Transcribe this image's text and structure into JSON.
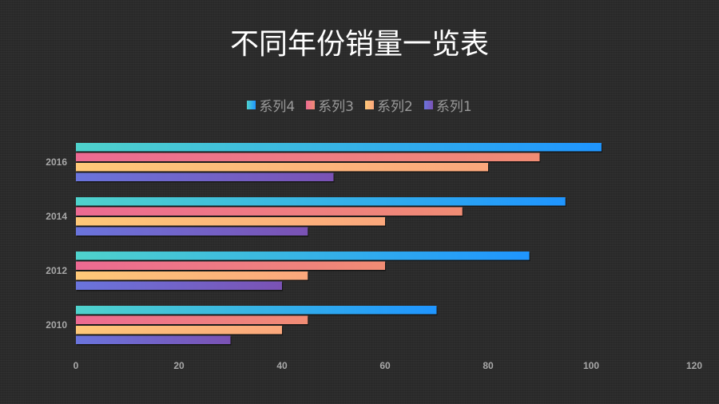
{
  "chart_data": {
    "type": "bar",
    "orientation": "horizontal",
    "title": "不同年份销量一览表",
    "categories": [
      "2010",
      "2012",
      "2014",
      "2016"
    ],
    "series": [
      {
        "name": "系列1",
        "values": [
          30,
          40,
          45,
          50
        ],
        "colors": [
          "#6a74dc",
          "#7a52b4"
        ]
      },
      {
        "name": "系列2",
        "values": [
          40,
          45,
          60,
          80
        ],
        "colors": [
          "#fec878",
          "#fba77c"
        ]
      },
      {
        "name": "系列3",
        "values": [
          45,
          60,
          75,
          90
        ],
        "colors": [
          "#ec6a92",
          "#f08c74"
        ]
      },
      {
        "name": "系列4",
        "values": [
          70,
          88,
          95,
          102
        ],
        "colors": [
          "#4fd2cc",
          "#1f95ff"
        ]
      }
    ],
    "legend_order": [
      "系列4",
      "系列3",
      "系列2",
      "系列1"
    ],
    "xlim": [
      0,
      120
    ],
    "xticks": [
      "0",
      "20",
      "40",
      "60",
      "80",
      "100",
      "120"
    ],
    "legend_position": "top",
    "grid": false
  }
}
